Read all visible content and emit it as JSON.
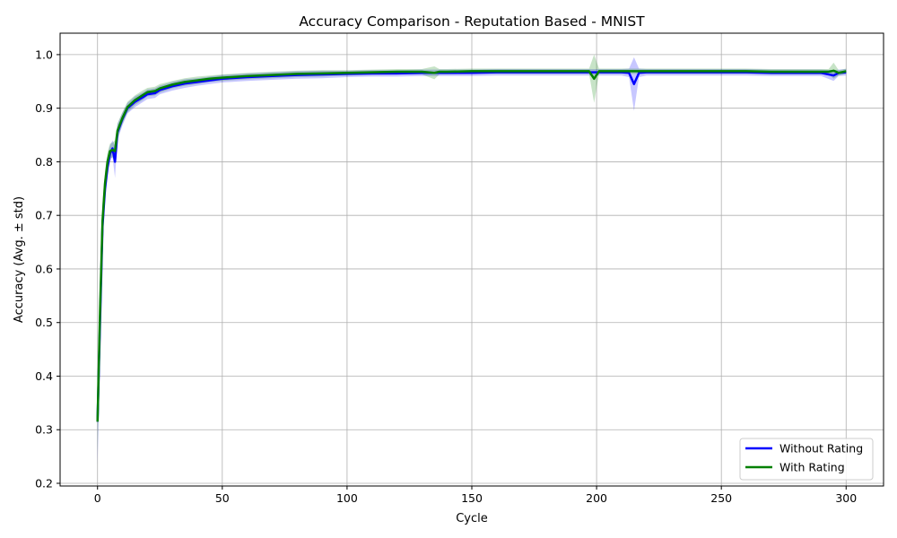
{
  "chart_data": {
    "type": "line",
    "title": "Accuracy Comparison - Reputation Based - MNIST",
    "xlabel": "Cycle",
    "ylabel": "Accuracy (Avg. ± std)",
    "xlim": [
      -15,
      315
    ],
    "ylim": [
      0.195,
      1.04
    ],
    "xticks": [
      0,
      50,
      100,
      150,
      200,
      250,
      300
    ],
    "yticks": [
      0.2,
      0.3,
      0.4,
      0.5,
      0.6,
      0.7,
      0.8,
      0.9,
      1.0
    ],
    "grid": true,
    "legend_position": "bottom-right",
    "series": [
      {
        "name": "Without Rating",
        "color": "#0000ff",
        "x": [
          0,
          1,
          2,
          3,
          4,
          5,
          6,
          7,
          8,
          10,
          12,
          15,
          18,
          20,
          23,
          25,
          30,
          35,
          40,
          45,
          50,
          60,
          70,
          80,
          90,
          100,
          110,
          120,
          130,
          140,
          150,
          160,
          170,
          180,
          190,
          200,
          210,
          213,
          215,
          217,
          220,
          230,
          240,
          250,
          260,
          270,
          280,
          290,
          295,
          297,
          300
        ],
        "y": [
          0.315,
          0.5,
          0.68,
          0.75,
          0.79,
          0.815,
          0.825,
          0.8,
          0.855,
          0.88,
          0.9,
          0.912,
          0.92,
          0.926,
          0.928,
          0.934,
          0.941,
          0.946,
          0.949,
          0.952,
          0.955,
          0.958,
          0.96,
          0.962,
          0.963,
          0.964,
          0.965,
          0.965,
          0.966,
          0.966,
          0.966,
          0.967,
          0.967,
          0.967,
          0.967,
          0.967,
          0.967,
          0.966,
          0.945,
          0.966,
          0.967,
          0.967,
          0.967,
          0.967,
          0.967,
          0.966,
          0.966,
          0.966,
          0.961,
          0.966,
          0.967
        ],
        "std": [
          0.08,
          0.07,
          0.04,
          0.025,
          0.02,
          0.015,
          0.015,
          0.03,
          0.015,
          0.012,
          0.01,
          0.01,
          0.009,
          0.009,
          0.009,
          0.008,
          0.008,
          0.008,
          0.007,
          0.007,
          0.007,
          0.007,
          0.007,
          0.007,
          0.007,
          0.006,
          0.006,
          0.006,
          0.006,
          0.006,
          0.006,
          0.006,
          0.006,
          0.006,
          0.006,
          0.006,
          0.006,
          0.008,
          0.05,
          0.008,
          0.006,
          0.006,
          0.006,
          0.006,
          0.006,
          0.006,
          0.006,
          0.006,
          0.01,
          0.006,
          0.006
        ]
      },
      {
        "name": "With Rating",
        "color": "#008000",
        "x": [
          0,
          1,
          2,
          3,
          4,
          5,
          6,
          7,
          8,
          10,
          12,
          15,
          18,
          20,
          23,
          25,
          30,
          35,
          40,
          45,
          50,
          60,
          70,
          80,
          90,
          100,
          110,
          120,
          130,
          135,
          137,
          140,
          150,
          160,
          170,
          180,
          190,
          197,
          199,
          201,
          205,
          210,
          220,
          230,
          240,
          250,
          260,
          270,
          280,
          290,
          293,
          295,
          297,
          300
        ],
        "y": [
          0.315,
          0.52,
          0.69,
          0.76,
          0.8,
          0.82,
          0.822,
          0.82,
          0.858,
          0.882,
          0.902,
          0.915,
          0.924,
          0.93,
          0.932,
          0.937,
          0.944,
          0.949,
          0.952,
          0.955,
          0.957,
          0.96,
          0.962,
          0.964,
          0.965,
          0.966,
          0.967,
          0.968,
          0.968,
          0.966,
          0.968,
          0.968,
          0.969,
          0.969,
          0.969,
          0.969,
          0.969,
          0.969,
          0.955,
          0.969,
          0.969,
          0.969,
          0.969,
          0.969,
          0.969,
          0.969,
          0.969,
          0.968,
          0.968,
          0.968,
          0.968,
          0.97,
          0.966,
          0.969
        ],
        "std": [
          0.06,
          0.06,
          0.035,
          0.022,
          0.018,
          0.014,
          0.014,
          0.02,
          0.014,
          0.011,
          0.01,
          0.009,
          0.009,
          0.008,
          0.008,
          0.008,
          0.007,
          0.007,
          0.007,
          0.006,
          0.006,
          0.006,
          0.006,
          0.006,
          0.006,
          0.005,
          0.005,
          0.005,
          0.005,
          0.012,
          0.005,
          0.005,
          0.005,
          0.005,
          0.005,
          0.005,
          0.005,
          0.005,
          0.045,
          0.005,
          0.005,
          0.005,
          0.005,
          0.005,
          0.005,
          0.005,
          0.005,
          0.005,
          0.005,
          0.005,
          0.005,
          0.015,
          0.005,
          0.005
        ]
      }
    ]
  }
}
